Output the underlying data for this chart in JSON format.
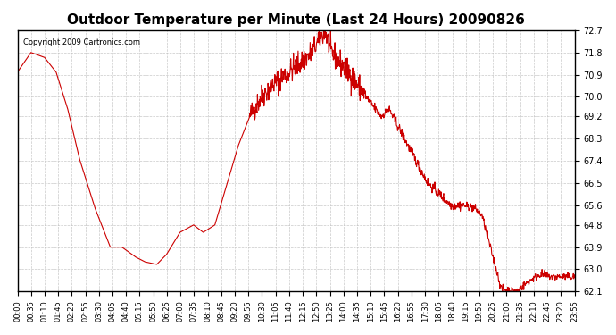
{
  "title": "Outdoor Temperature per Minute (Last 24 Hours) 20090826",
  "copyright_text": "Copyright 2009 Cartronics.com",
  "line_color": "#cc0000",
  "background_color": "#ffffff",
  "grid_color": "#bbbbbb",
  "yticks": [
    62.1,
    63.0,
    63.9,
    64.8,
    65.6,
    66.5,
    67.4,
    68.3,
    69.2,
    70.0,
    70.9,
    71.8,
    72.7
  ],
  "ymin": 62.1,
  "ymax": 72.7,
  "xtick_labels": [
    "00:00",
    "00:35",
    "01:10",
    "01:45",
    "02:20",
    "02:55",
    "03:30",
    "04:05",
    "04:40",
    "05:15",
    "05:50",
    "06:25",
    "07:00",
    "07:35",
    "08:10",
    "08:45",
    "09:20",
    "09:55",
    "10:30",
    "11:05",
    "11:40",
    "12:15",
    "12:50",
    "13:25",
    "14:00",
    "14:35",
    "15:10",
    "15:45",
    "16:20",
    "16:55",
    "17:30",
    "18:05",
    "18:40",
    "19:15",
    "19:50",
    "20:25",
    "21:00",
    "21:35",
    "22:10",
    "22:45",
    "23:20",
    "23:55"
  ],
  "curve_x_key_points": [
    0,
    35,
    70,
    100,
    130,
    160,
    200,
    240,
    270,
    305,
    330,
    360,
    385,
    420,
    455,
    480,
    510,
    570,
    600,
    630,
    660,
    700,
    740,
    760,
    795,
    810,
    860,
    900,
    940,
    960,
    1000,
    1060,
    1120,
    1150,
    1180,
    1200,
    1250,
    1290,
    1320,
    1350,
    1380,
    1439
  ],
  "curve_y_key_points": [
    71.0,
    71.8,
    71.6,
    71.0,
    69.5,
    67.5,
    65.5,
    63.9,
    63.9,
    63.5,
    63.3,
    63.2,
    63.6,
    64.5,
    64.8,
    64.5,
    64.8,
    68.0,
    69.2,
    70.0,
    70.5,
    71.0,
    71.5,
    71.8,
    72.7,
    71.8,
    70.9,
    70.0,
    69.2,
    69.5,
    68.3,
    66.5,
    65.6,
    65.6,
    65.5,
    65.2,
    62.2,
    62.1,
    62.5,
    62.8,
    62.7,
    62.7
  ]
}
